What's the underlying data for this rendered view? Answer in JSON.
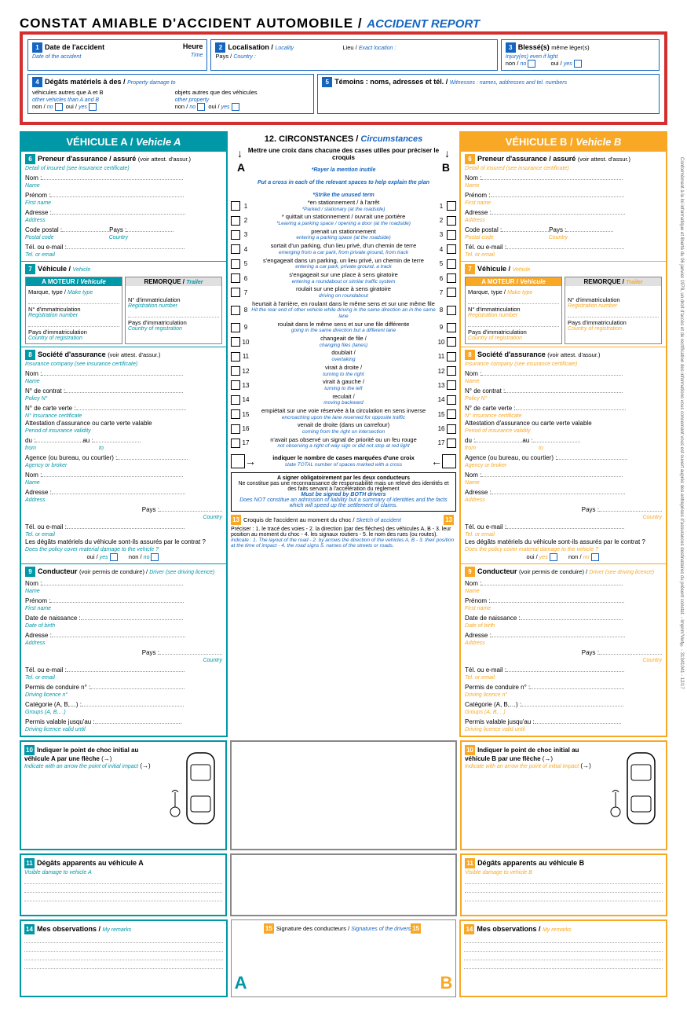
{
  "title_fr": "CONSTAT AMIABLE D'ACCIDENT AUTOMOBILE / ",
  "title_en": "ACCIDENT REPORT",
  "colors": {
    "red": "#d32f2f",
    "blue": "#1565c0",
    "teal": "#0097a7",
    "yellow": "#f9a825"
  },
  "top": {
    "s1": {
      "n": "1",
      "fr": "Date de l'accident",
      "en": "Date of the accident",
      "h_fr": "Heure",
      "h_en": "Time"
    },
    "s2": {
      "n": "2",
      "fr": "Localisation / ",
      "en": "Locality",
      "l_fr": "Lieu / ",
      "l_en": "Exact location :",
      "p_fr": "Pays / ",
      "p_en": "Country :"
    },
    "s3": {
      "n": "3",
      "fr": "Blessé(s) ",
      "fr2": "même léger(s)",
      "en": "Injury(es) even if light",
      "non": "non / ",
      "no": "no",
      "oui": "oui / ",
      "yes": "yes"
    },
    "s4": {
      "n": "4",
      "fr": "Dégâts matériels à des / ",
      "en": "Property damage to",
      "v_fr": "véhicules autres que A et B",
      "v_en": "other vehicles than A and B",
      "o_fr": "objets autres que des véhicules",
      "o_en": "other property"
    },
    "s5": {
      "n": "5",
      "fr": "Témoins : noms, adresses et tél. / ",
      "en": "Witnesses : names, addresses and tel. numbers"
    }
  },
  "veh_a_title": "VÉHICULE A / ",
  "veh_a_title_en": "Vehicle A",
  "veh_b_title": "VÉHICULE B / ",
  "veh_b_title_en": "Vehicle B",
  "circ_title": "12. CIRCONSTANCES / ",
  "circ_title_en": "Circumstances",
  "circ_instr_fr": "Mettre une croix dans chacune des cases utiles pour préciser le croquis",
  "circ_instr_strike": "*Rayer la mention inutile",
  "circ_instr_en": "Put a cross in each of the relevant spaces to help explain the plan",
  "circ_instr_strike_en": "*Strike the unused term",
  "sections": {
    "s6": {
      "n": "6",
      "fr": "Preneur d'assurance / assuré ",
      "fr2": "(voir attest. d'assur.)",
      "en": "Detail of insured (see insurance certificate)"
    },
    "s7": {
      "n": "7",
      "fr": "Véhicule / ",
      "en": "Vehicle"
    },
    "s8": {
      "n": "8",
      "fr": "Société d'assurance ",
      "fr2": "(voir attest. d'assur.)",
      "en": "Insurance company (see insurance certificate)"
    },
    "s9": {
      "n": "9",
      "fr": "Conducteur ",
      "fr2": "(voir permis de conduire) / ",
      "en": "Driver (see driving licence)"
    },
    "s10": {
      "n": "10",
      "fr": "Indiquer le point de choc initial au véhicule A par une flèche",
      "en": "Indicate with an arrow the point of initial impact"
    },
    "s10b": {
      "fr": "Indiquer le point de choc initial au véhicule B par une flèche",
      "en": "Indicate with an arrow the point of initial impact"
    },
    "s11": {
      "n": "11",
      "fr": "Dégâts apparents au véhicule A",
      "en": "Visible damage to vehicle A"
    },
    "s11b": {
      "fr": "Dégâts apparents au véhicule B",
      "en": "Visible damage to vehicle B"
    },
    "s13": {
      "n": "13",
      "fr": "Croquis de l'accident au moment du choc / ",
      "en": "Sketch of accident"
    },
    "s14": {
      "n": "14",
      "fr": "Mes observations / ",
      "en": "My remarks"
    },
    "s15": {
      "n": "15",
      "fr": "Signature des conducteurs / ",
      "en": "Signatures of the drivers"
    }
  },
  "fields": {
    "nom": "Nom :",
    "nom_en": "Name",
    "prenom": "Prénom :",
    "prenom_en": "First name",
    "adresse": "Adresse :",
    "adresse_en": "Address",
    "cp": "Code postal :",
    "cp_en": "Postal code",
    "pays": "Pays :",
    "pays_en": "Country",
    "tel": "Tél. ou e-mail :",
    "tel_en": "Tel. or email",
    "moteur": "A MOTEUR / ",
    "moteur_en": "Vehicule",
    "remorque": "REMORQUE / ",
    "remorque_en": "Trailer",
    "marque": "Marque, type / ",
    "marque_en": "Make type",
    "immat": "N° d'immatriculation",
    "immat_en": "Registration number",
    "pays_immat": "Pays d'immatriculation",
    "pays_immat_en": "Country of registration",
    "contrat": "N° de contrat :",
    "contrat_en": "Policy N°",
    "carte": "N° de carte verte :",
    "carte_en": "N° Insurance certificate",
    "attest": "Attestation d'assurance ou carte verte valable",
    "attest_en": "Period of insurance validity",
    "du": "du :",
    "du_en": "from",
    "au": "au :",
    "au_en": "to",
    "agence": "Agence (ou bureau, ou courtier) :",
    "agence_en": "Agency or broker",
    "degats_q": "Les dégâts matériels du véhicule sont-ils assurés par le contrat ?",
    "degats_q_en": "Does the policy cover material damage to the vehicle ?",
    "oui": "oui / ",
    "yes": "yes",
    "non": "non / ",
    "no": "no",
    "dob": "Date de naissance :",
    "dob_en": "Date of birth",
    "permis": "Permis de conduire n° :",
    "permis_en": "Driving licence n°",
    "cat": "Catégorie (A, B,…) :",
    "cat_en": "Groups (A, B,…)",
    "valid": "Permis valable jusqu'au :",
    "valid_en": "Driving licence valid until"
  },
  "circ": [
    {
      "n": "1",
      "fr": "*en stationnement / à l'arrêt",
      "en": "*Parked / stationary (at the roadside)"
    },
    {
      "n": "2",
      "fr": "* quittait un stationnement / ouvrait une portière",
      "en": "*Leaving a parking space / opening a door (at the roadside)"
    },
    {
      "n": "3",
      "fr": "prenait un stationnement",
      "en": "entering a parking space (at the roadside)"
    },
    {
      "n": "4",
      "fr": "sortait d'un parking, d'un lieu privé, d'un chemin de terre",
      "en": "emerging from a car park, from private ground, from track"
    },
    {
      "n": "5",
      "fr": "s'engageait dans un parking, un lieu privé, un chemin de terre",
      "en": "entering a car park, private ground, a track"
    },
    {
      "n": "6",
      "fr": "s'engageait sur une place à sens giratoire",
      "en": "entering a roundabout or similar traffic system"
    },
    {
      "n": "7",
      "fr": "roulait sur une place à sens giratoire",
      "en": "driving on roundabout"
    },
    {
      "n": "8",
      "fr": "heurtait à l'arrière, en roulant dans le même sens et sur une même file",
      "en": "Hit the rear end of other vehicle while driving in the same direction an in the same lane"
    },
    {
      "n": "9",
      "fr": "roulait dans le même sens et sur une file différente",
      "en": "going in the same direction but a different lane"
    },
    {
      "n": "10",
      "fr": "changeait de file / ",
      "en": "changing files (lanes)"
    },
    {
      "n": "11",
      "fr": "doublait / ",
      "en": "overtaking"
    },
    {
      "n": "12",
      "fr": "virait à droite / ",
      "en": "turning to the right"
    },
    {
      "n": "13",
      "fr": "virait à gauche / ",
      "en": "turning to the left"
    },
    {
      "n": "14",
      "fr": "reculait / ",
      "en": "moving backward"
    },
    {
      "n": "15",
      "fr": "empiétait sur une voie réservée à la circulation en sens inverse",
      "en": "encroaching upon the lane reserved for opposite traffic"
    },
    {
      "n": "16",
      "fr": "venait de droite (dans un carrefour)",
      "en": "coming from the right on intersection"
    },
    {
      "n": "17",
      "fr": "n'avait pas observé un signal de priorité ou un feu rouge",
      "en": "not observing a right of way sign or did not stop at red light"
    }
  ],
  "circ_total_fr": "indiquer le nombre de cases marquées d'une croix",
  "circ_total_en": "state TOTAL number of spaces marked with a cross",
  "sign_fr": "A signer obligatoirement par les deux conducteurs",
  "sign_txt": "Ne constitue pas une reconnaissance de responsabilité mais un relevé des identités et des faits servant à l'accélération du règlement",
  "sign_en": "Must be signed by BOTH drivers",
  "sign_txt_en": "Does NOT constitue an admission of liability but a summary of identities and the facts which will speed up the settlement of claims.",
  "sketch_instr": "Préciser : 1. le tracé des voies - 2. la direction (par des flèches) des véhicules A, B - 3. leur position au moment du choc - 4. les signaux routiers - 5. le nom des rues (ou routes).",
  "sketch_instr_en": "Indicate : 1. The layout of the road - 2. by arrows the direction of the vehicles A, B - 3. their position at the time of impact - 4. the road signs 5. names of the streets or roads.",
  "side_txt": "Conformément à la loi informatique et liberté du 06 janvier 1978, un droit d'accès et de rectification des informations vous concernant vous est ouvert auprès des entreprises d'assurances destinataires du présent constat. - Imprim'Vert® - 31341041 - 12/17",
  "A": "A",
  "B": "B"
}
